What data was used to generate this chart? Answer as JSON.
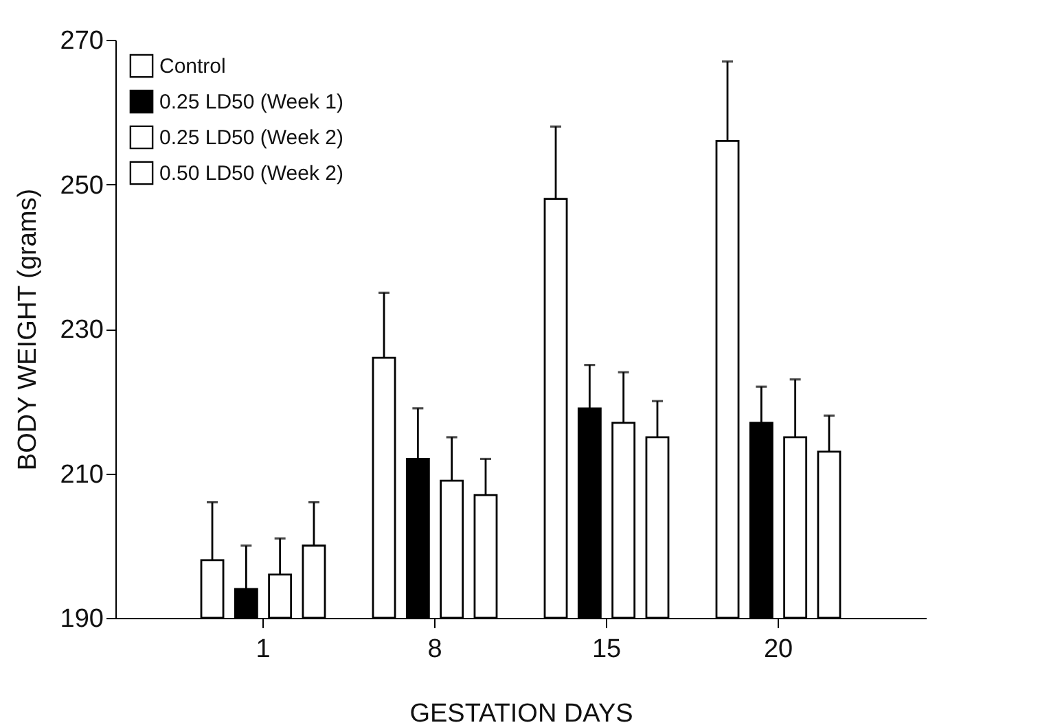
{
  "chart_data": {
    "type": "bar",
    "xlabel": "GESTATION DAYS",
    "ylabel": "BODY WEIGHT (grams)",
    "categories": [
      "1",
      "8",
      "15",
      "20"
    ],
    "series": [
      {
        "name": "Control",
        "color": "#ffffff",
        "values": [
          198,
          226,
          248,
          256
        ],
        "errors": [
          [
            198,
            206
          ],
          [
            226,
            235
          ],
          [
            248,
            258
          ],
          [
            256,
            267
          ]
        ]
      },
      {
        "name": "0.25 LD50 (Week 1)",
        "color": "#000000",
        "values": [
          194,
          212,
          219,
          217
        ],
        "errors": [
          [
            194,
            200
          ],
          [
            212,
            219
          ],
          [
            219,
            225
          ],
          [
            217,
            222
          ]
        ]
      },
      {
        "name": "0.25 LD50 (Week 2)",
        "color": "#ffffff",
        "values": [
          196,
          209,
          217,
          215
        ],
        "errors": [
          [
            196,
            201
          ],
          [
            209,
            215
          ],
          [
            217,
            224
          ],
          [
            215,
            223
          ]
        ]
      },
      {
        "name": "0.50 LD50 (Week 2)",
        "color": "#ffffff",
        "values": [
          200,
          207,
          215,
          213
        ],
        "errors": [
          [
            200,
            206
          ],
          [
            207,
            212
          ],
          [
            215,
            220
          ],
          [
            213,
            218
          ]
        ]
      }
    ],
    "ylim": [
      190,
      270
    ],
    "yticks": [
      190,
      210,
      230,
      250,
      270
    ],
    "grid": false,
    "legend": "top left"
  }
}
